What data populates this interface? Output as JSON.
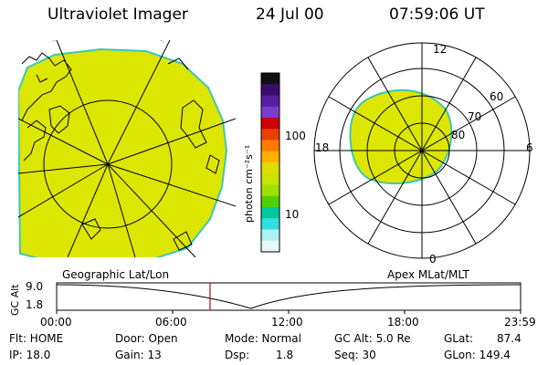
{
  "header": {
    "title": "Ultraviolet Imager",
    "date": "24 Jul 00",
    "time": "07:59:06 UT"
  },
  "colorbar": {
    "unit_label": "photon cm⁻²s⁻¹",
    "ticks": [
      "100",
      "10"
    ],
    "colors": [
      "#101010",
      "#3b0d6e",
      "#5a1fa0",
      "#7a3ccc",
      "#d10000",
      "#e84000",
      "#ff7a00",
      "#ffb000",
      "#dddd00",
      "#c9e400",
      "#9fe000",
      "#50d000",
      "#00c8a0",
      "#30e0e0",
      "#b0f0f0",
      "#e8f8f8"
    ]
  },
  "polar_plot": {
    "labels": {
      "top": "12",
      "bottom": "0",
      "left": "18",
      "right": "6"
    },
    "lat_labels": [
      "60",
      "70",
      "80"
    ]
  },
  "timeline": {
    "left_title": "Geographic Lat/Lon",
    "right_title": "Apex MLat/MLT",
    "yaxis_label": "GC Alt",
    "yticks": [
      "9.0",
      "1.8"
    ],
    "xticks": [
      "00:00",
      "06:00",
      "12:00",
      "18:00",
      "23:59"
    ],
    "marker_color": "#cc0000"
  },
  "info": {
    "flt": "Flt: HOME",
    "ip": "IP: 18.0",
    "door": "Door: Open",
    "gain": "Gain: 13",
    "mode": "Mode: Normal",
    "dsp": "Dsp:",
    "dsp_val": "1.8",
    "gcalt": "GC Alt: 5.0 Re",
    "seq": "Seq: 30",
    "glat": "GLat:",
    "glat_val": "87.4",
    "glon": "GLon: 149.4"
  },
  "colors": {
    "emission": "#dde600",
    "emission_edge": "#3cc8b4"
  }
}
